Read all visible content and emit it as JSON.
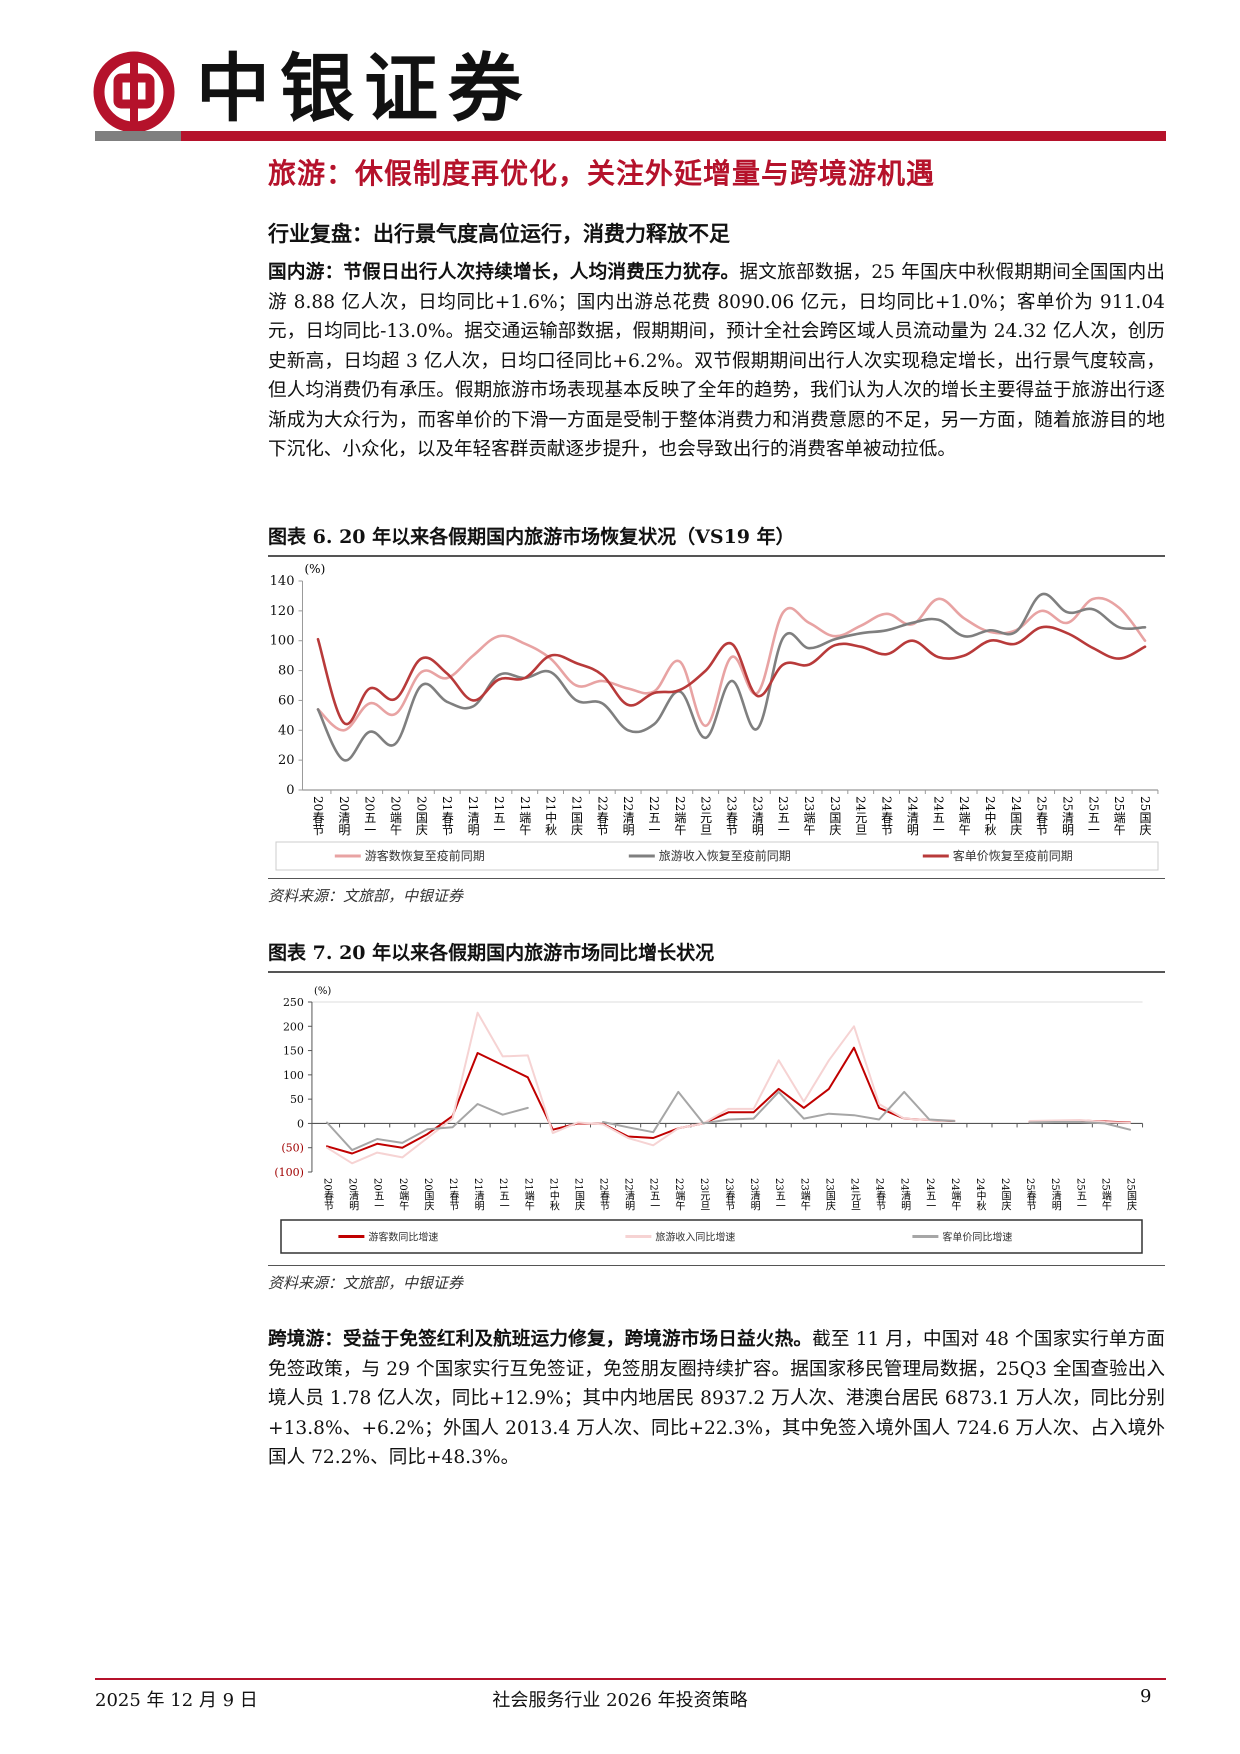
{
  "header": {
    "brand": "中银证券",
    "colors": {
      "brand_red": "#b5122b",
      "gray": "#7f7f7f"
    }
  },
  "section_title": "旅游：休假制度再优化，关注外延增量与跨境游机遇",
  "sub_title": "行业复盘：出行景气度高位运行，消费力释放不足",
  "para1": {
    "lead": "国内游：节假日出行人次持续增长，人均消费压力犹存。",
    "body": "据文旅部数据，25 年国庆中秋假期期间全国国内出游 8.88 亿人次，日均同比+1.6%；国内出游总花费 8090.06 亿元，日均同比+1.0%；客单价为 911.04 元，日均同比-13.0%。据交通运输部数据，假期期间，预计全社会跨区域人员流动量为 24.32 亿人次，创历史新高，日均超 3 亿人次，日均口径同比+6.2%。双节假期期间出行人次实现稳定增长，出行景气度较高，但人均消费仍有承压。假期旅游市场表现基本反映了全年的趋势，我们认为人次的增长主要得益于旅游出行逐渐成为大众行为，而客单价的下滑一方面是受制于整体消费力和消费意愿的不足，另一方面，随着旅游目的地下沉化、小众化，以及年轻客群贡献逐步提升，也会导致出行的消费客单被动拉低。"
  },
  "para2": {
    "lead": "跨境游：受益于免签红利及航班运力修复，跨境游市场日益火热。",
    "body": "截至 11 月，中国对 48 个国家实行单方面免签政策，与 29 个国家实行互免签证，免签朋友圈持续扩容。据国家移民管理局数据，25Q3 全国查验出入境人员 1.78 亿人次，同比+12.9%；其中内地居民 8937.2 万人次、港澳台居民 6873.1 万人次，同比分别+13.8%、+6.2%；外国人 2013.4 万人次、同比+22.3%，其中免签入境外国人 724.6 万人次、占入境外国人 72.2%、同比+48.3%。"
  },
  "figure6": {
    "title": "图表 6. 20 年以来各假期国内旅游市场恢复状况（VS19 年）",
    "source": "资料来源：文旅部，中银证券"
  },
  "figure7": {
    "title": "图表 7. 20 年以来各假期国内旅游市场同比增长状况",
    "source": "资料来源：文旅部，中银证券"
  },
  "chart_data": [
    {
      "type": "line",
      "title": "20 年以来各假期国内旅游市场恢复状况（VS19 年）",
      "ylabel": "(%)",
      "ylim": [
        0,
        140
      ],
      "yticks": [
        "0",
        "20",
        "40",
        "60",
        "80",
        "100",
        "120",
        "140"
      ],
      "ytick_values": [
        0,
        20,
        40,
        60,
        80,
        100,
        120,
        140
      ],
      "smooth": true,
      "legend": "bottom",
      "categories": [
        "20春节",
        "20清明",
        "20五一",
        "20端午",
        "20国庆",
        "21春节",
        "21清明",
        "21五一",
        "21端午",
        "21中秋",
        "21国庆",
        "22春节",
        "22清明",
        "22五一",
        "22端午",
        "23元旦",
        "23春节",
        "23清明",
        "23五一",
        "23端午",
        "23国庆",
        "24元旦",
        "24春节",
        "24清明",
        "24五一",
        "24端午",
        "24中秋",
        "24国庆",
        "25春节",
        "25清明",
        "25五一",
        "25端午",
        "25国庆"
      ],
      "series": [
        {
          "name": "游客数恢复至疫前同期",
          "color": "#e8a3a3",
          "values": [
            54,
            40,
            58,
            51,
            79,
            75,
            90,
            103,
            98,
            88,
            70,
            73,
            68,
            66,
            86,
            43,
            89,
            65,
            119,
            112,
            103,
            110,
            118,
            111,
            128,
            115,
            106,
            107,
            120,
            112,
            128,
            122,
            100
          ]
        },
        {
          "name": "旅游收入恢复至疫前同期",
          "color": "#7f7f7f",
          "values": [
            54,
            20,
            39,
            31,
            70,
            59,
            56,
            77,
            75,
            79,
            60,
            58,
            40,
            44,
            66,
            35,
            73,
            41,
            102,
            95,
            101,
            105,
            107,
            112,
            114,
            103,
            107,
            106,
            131,
            119,
            121,
            109,
            109
          ]
        },
        {
          "name": "客单价恢复至疫前同期",
          "color": "#b83a3a",
          "values": [
            101,
            45,
            68,
            61,
            88,
            78,
            60,
            74,
            75,
            90,
            85,
            77,
            57,
            65,
            67,
            80,
            98,
            63,
            84,
            84,
            97,
            96,
            91,
            100,
            89,
            90,
            100,
            98,
            109,
            105,
            95,
            88,
            96
          ]
        }
      ]
    },
    {
      "type": "line",
      "title": "20 年以来各假期国内旅游市场同比增长状况",
      "ylabel": "(%)",
      "ylim": [
        -100,
        250
      ],
      "yticks": [
        "(100)",
        "(50)",
        "0",
        "50",
        "100",
        "150",
        "200",
        "250"
      ],
      "ytick_values": [
        -100,
        -50,
        0,
        50,
        100,
        150,
        200,
        250
      ],
      "smooth": false,
      "legend": "bottom",
      "categories": [
        "20春节",
        "20清明",
        "20五一",
        "20端午",
        "20国庆",
        "21春节",
        "21清明",
        "21五一",
        "21端午",
        "21中秋",
        "21国庆",
        "22春节",
        "22清明",
        "22五一",
        "22端午",
        "23元旦",
        "23春节",
        "23清明",
        "23五一",
        "23端午",
        "23国庆",
        "24元旦",
        "24春节",
        "24清明",
        "24五一",
        "24端午",
        "24中秋",
        "24国庆",
        "25春节",
        "25清明",
        "25五一",
        "25端午",
        "25国庆"
      ],
      "series": [
        {
          "name": "游客数同比增速",
          "color": "#c00000",
          "values": [
            -47,
            -62,
            -42,
            -50,
            -22,
            15,
            145,
            120,
            95,
            -13,
            0,
            -1,
            -27,
            -30,
            -10,
            0,
            23,
            23,
            71,
            32,
            71,
            156,
            32,
            10,
            7,
            5,
            null,
            null,
            3,
            4,
            6,
            4,
            2
          ]
        },
        {
          "name": "旅游收入同比增速",
          "color": "#f6d3d3",
          "values": [
            -50,
            -82,
            -60,
            -70,
            -30,
            10,
            228,
            138,
            140,
            -20,
            2,
            -2,
            -30,
            -45,
            -10,
            0,
            30,
            30,
            130,
            45,
            130,
            200,
            40,
            10,
            7,
            6,
            null,
            null,
            5,
            6,
            7,
            3,
            1
          ]
        },
        {
          "name": "客单价同比增速",
          "color": "#a6a6a6",
          "values": [
            2,
            -55,
            -32,
            -40,
            -12,
            -8,
            40,
            18,
            32,
            null,
            null,
            3,
            -8,
            -18,
            65,
            0,
            8,
            10,
            65,
            10,
            20,
            17,
            8,
            65,
            8,
            5,
            null,
            null,
            2,
            3,
            3,
            0,
            -13
          ]
        }
      ]
    }
  ],
  "footer": {
    "date": "2025 年 12 月 9 日",
    "report": "社会服务行业 2026 年投资策略",
    "page": "9"
  }
}
